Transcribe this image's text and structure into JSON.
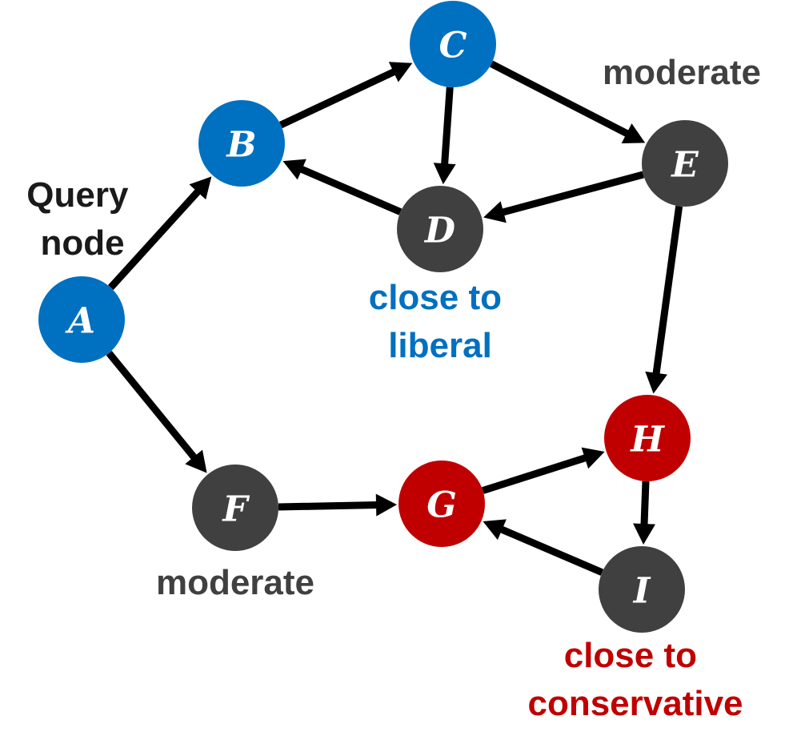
{
  "colors": {
    "blue": "#0070c0",
    "gray": "#404040",
    "red": "#c00000",
    "edge": "#000000",
    "text": "#1a1a1a"
  },
  "nodes": [
    {
      "id": "A",
      "label": "A",
      "color": "blue"
    },
    {
      "id": "B",
      "label": "B",
      "color": "blue"
    },
    {
      "id": "C",
      "label": "C",
      "color": "blue"
    },
    {
      "id": "D",
      "label": "D",
      "color": "gray"
    },
    {
      "id": "E",
      "label": "E",
      "color": "gray"
    },
    {
      "id": "F",
      "label": "F",
      "color": "gray"
    },
    {
      "id": "G",
      "label": "G",
      "color": "red"
    },
    {
      "id": "H",
      "label": "H",
      "color": "red"
    },
    {
      "id": "I",
      "label": "I",
      "color": "gray"
    }
  ],
  "edges": [
    {
      "from": "A",
      "to": "B"
    },
    {
      "from": "A",
      "to": "F"
    },
    {
      "from": "B",
      "to": "C"
    },
    {
      "from": "C",
      "to": "D"
    },
    {
      "from": "C",
      "to": "E"
    },
    {
      "from": "D",
      "to": "B"
    },
    {
      "from": "E",
      "to": "D"
    },
    {
      "from": "E",
      "to": "H"
    },
    {
      "from": "F",
      "to": "G"
    },
    {
      "from": "G",
      "to": "H"
    },
    {
      "from": "H",
      "to": "I"
    },
    {
      "from": "I",
      "to": "G"
    }
  ],
  "annotations": {
    "query": {
      "line1": "Query",
      "line2": "node"
    },
    "moderate_e": "moderate",
    "moderate_f": "moderate",
    "liberal": {
      "line1": "close to",
      "line2": "liberal"
    },
    "conservative": {
      "line1": "close to",
      "line2": "conservative"
    }
  }
}
